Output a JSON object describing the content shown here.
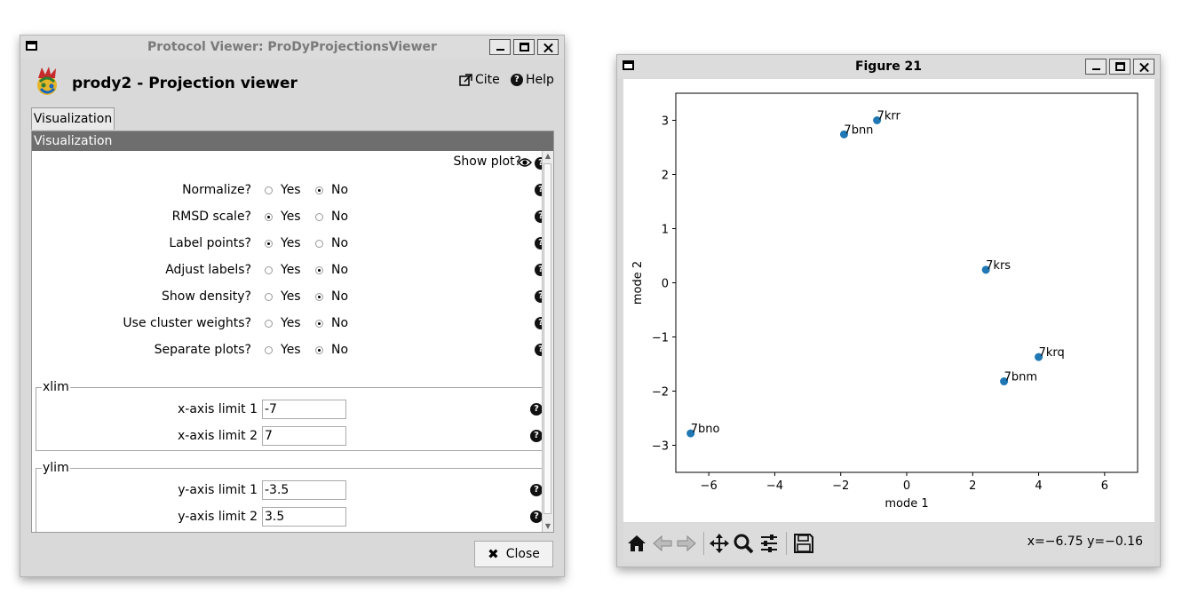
{
  "protocol_window": {
    "title": "Protocol Viewer: ProDyProjectionsViewer",
    "heading": "prody2 - Projection viewer",
    "cite_label": "Cite",
    "help_label": "Help",
    "tab_label": "Visualization",
    "section_title": "Visualization",
    "show_plot_label": "Show plot?",
    "params": [
      {
        "label": "Normalize?",
        "yes": "Yes",
        "no": "No",
        "selected": "No"
      },
      {
        "label": "RMSD scale?",
        "yes": "Yes",
        "no": "No",
        "selected": "Yes"
      },
      {
        "label": "Label points?",
        "yes": "Yes",
        "no": "No",
        "selected": "Yes"
      },
      {
        "label": "Adjust labels?",
        "yes": "Yes",
        "no": "No",
        "selected": "No"
      },
      {
        "label": "Show density?",
        "yes": "Yes",
        "no": "No",
        "selected": "No"
      },
      {
        "label": "Use cluster weights?",
        "yes": "Yes",
        "no": "No",
        "selected": "No"
      },
      {
        "label": "Separate plots?",
        "yes": "Yes",
        "no": "No",
        "selected": "No"
      }
    ],
    "xlim": {
      "legend": "xlim",
      "label1": "x-axis limit 1",
      "value1": "-7",
      "label2": "x-axis limit 2",
      "value2": "7"
    },
    "ylim": {
      "legend": "ylim",
      "label1": "y-axis limit 1",
      "value1": "-3.5",
      "label2": "y-axis limit 2",
      "value2": "3.5"
    },
    "close_label": "Close"
  },
  "figure_window": {
    "title": "Figure 21",
    "coords_text": "x=−6.75 y=−0.16",
    "toolbar_icons": [
      "home-icon",
      "back-arrow-icon",
      "forward-arrow-icon",
      "pan-move-icon",
      "zoom-magnifier-icon",
      "configure-subplots-icon",
      "save-floppy-icon"
    ]
  },
  "chart_data": {
    "type": "scatter",
    "xlabel": "mode 1",
    "ylabel": "mode 2",
    "xlim": [
      -7,
      7
    ],
    "ylim": [
      -3.5,
      3.5
    ],
    "xticks": [
      -6,
      -4,
      -2,
      0,
      2,
      4,
      6
    ],
    "yticks": [
      -3,
      -2,
      -1,
      0,
      1,
      2,
      3
    ],
    "grid": false,
    "color": "#1f77b4",
    "points": [
      {
        "label": "7krr",
        "x": -0.9,
        "y": 3.0
      },
      {
        "label": "7bnn",
        "x": -1.9,
        "y": 2.74
      },
      {
        "label": "7krs",
        "x": 2.4,
        "y": 0.24
      },
      {
        "label": "7krq",
        "x": 4.0,
        "y": -1.37
      },
      {
        "label": "7bnm",
        "x": 2.95,
        "y": -1.82
      },
      {
        "label": "7bno",
        "x": -6.55,
        "y": -2.78
      }
    ]
  }
}
